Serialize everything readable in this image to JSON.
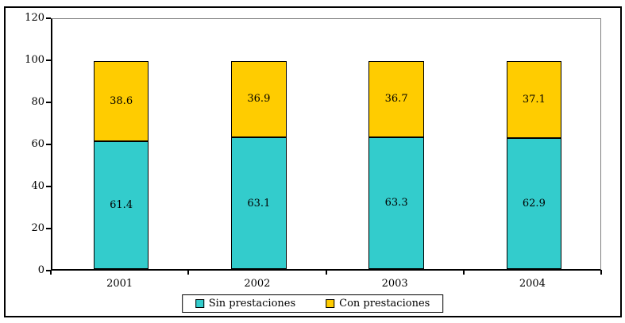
{
  "chart_data": {
    "type": "bar",
    "stacked": true,
    "orientation": "vertical",
    "title": "",
    "xlabel": "",
    "ylabel": "",
    "categories": [
      "2001",
      "2002",
      "2003",
      "2004"
    ],
    "series": [
      {
        "name": "Sin prestaciones",
        "color": "#33CCCC",
        "values": [
          61.4,
          63.1,
          63.3,
          62.9
        ]
      },
      {
        "name": "Con prestaciones",
        "color": "#FFCC00",
        "values": [
          38.6,
          36.9,
          36.7,
          37.1
        ]
      }
    ],
    "value_labels": {
      "Sin prestaciones": [
        "61.4",
        "63.1",
        "63.3",
        "62.9"
      ],
      "Con prestaciones": [
        "38.6",
        "36.9",
        "36.7",
        "37.1"
      ]
    },
    "ylim": [
      0,
      120
    ],
    "y_ticks": [
      0,
      20,
      40,
      60,
      80,
      100,
      120
    ],
    "grid": false,
    "legend_position": "bottom",
    "colors": {
      "axis": "#000000",
      "plot_border_gray": "#808080",
      "background": "#ffffff",
      "text": "#000000"
    }
  }
}
